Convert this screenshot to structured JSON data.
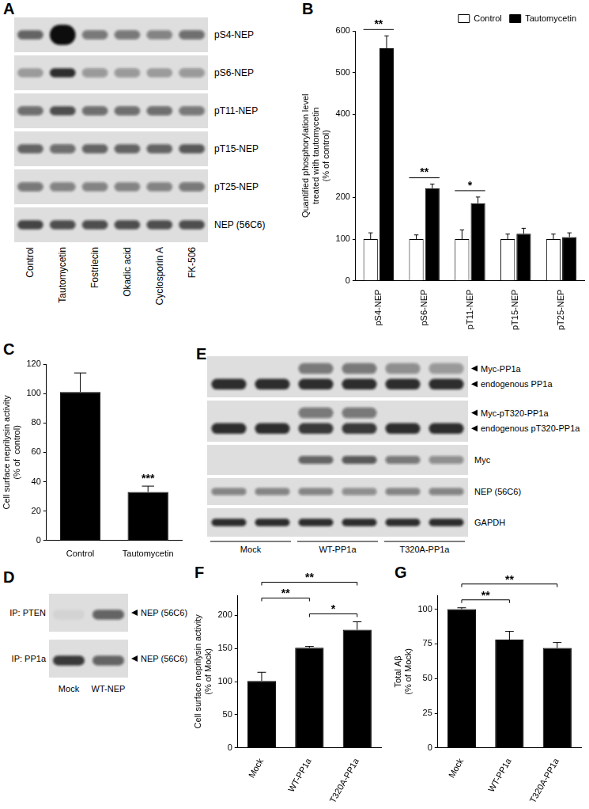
{
  "chart_data": [
    {
      "type": "bar",
      "title": "B",
      "categories": [
        "pS4-NEP",
        "pS6-NEP",
        "pT11-NEP",
        "pT15-NEP",
        "pT25-NEP"
      ],
      "series": [
        {
          "name": "Control",
          "color": "#ffffff",
          "values": [
            100,
            100,
            100,
            100,
            100
          ],
          "errors": [
            15,
            10,
            22,
            12,
            12
          ]
        },
        {
          "name": "Tautomycetin",
          "color": "#000000",
          "values": [
            558,
            222,
            186,
            113,
            105
          ],
          "errors": [
            30,
            10,
            15,
            13,
            10
          ]
        }
      ],
      "y_label": [
        "Quantified phosphorylation level",
        "treated with tautomycetin",
        "(% of control)"
      ],
      "ylim": [
        0,
        600
      ],
      "yticks": [
        0,
        100,
        200,
        400,
        500,
        600
      ],
      "legend": "top right",
      "grid": false,
      "annotations": [
        {
          "text": "**",
          "category": "pS4-NEP"
        },
        {
          "text": "**",
          "category": "pS6-NEP"
        },
        {
          "text": "*",
          "category": "pT11-NEP"
        }
      ]
    },
    {
      "type": "bar",
      "title": "C",
      "categories": [
        "Control",
        "Tautomycetin"
      ],
      "values": [
        101,
        33
      ],
      "errors": [
        13,
        4
      ],
      "color": "#000000",
      "y_label": [
        "Cell surface neprilysin activity",
        "(% of  control)"
      ],
      "ylim": [
        0,
        120
      ],
      "yticks": [
        0,
        20,
        40,
        60,
        80,
        100,
        120
      ],
      "grid": false,
      "annotations": [
        {
          "text": "***",
          "category": "Tautomycetin"
        }
      ]
    },
    {
      "type": "bar",
      "title": "F",
      "categories": [
        "Mock",
        "WT-PP1a",
        "T320A-PP1a"
      ],
      "values": [
        101,
        151,
        178
      ],
      "errors": [
        13,
        2,
        12
      ],
      "color": "#000000",
      "y_label": [
        "Cell surface neprilysin activity",
        "(% of Mock)"
      ],
      "ylim": [
        0,
        230
      ],
      "yticks": [
        0,
        50,
        100,
        150,
        200
      ],
      "grid": false,
      "annotations": [
        {
          "text": "*",
          "from": "WT-PP1a",
          "to": "T320A-PP1a"
        },
        {
          "text": "**",
          "from": "Mock",
          "to": "WT-PP1a"
        },
        {
          "text": "**",
          "from": "Mock",
          "to": "T320A-PP1a"
        }
      ]
    },
    {
      "type": "bar",
      "title": "G",
      "categories": [
        "Mock",
        "WT-PP1a",
        "T320A-PP1a"
      ],
      "values": [
        100,
        78,
        72
      ],
      "errors": [
        1,
        6,
        4
      ],
      "color": "#000000",
      "y_label": [
        "Total Aβ",
        "(% of Mock)"
      ],
      "ylim": [
        0,
        110
      ],
      "yticks": [
        0,
        25,
        50,
        75,
        100
      ],
      "grid": false,
      "annotations": [
        {
          "text": "**",
          "from": "Mock",
          "to": "WT-PP1a"
        },
        {
          "text": "**",
          "from": "Mock",
          "to": "T320A-PP1a"
        }
      ]
    }
  ],
  "blots": [
    {
      "title": "A",
      "rows": [
        {
          "labels": [
            "pS4-NEP"
          ]
        },
        {
          "labels": [
            "pS6-NEP"
          ]
        },
        {
          "labels": [
            "pT11-NEP"
          ]
        },
        {
          "labels": [
            "pT15-NEP"
          ]
        },
        {
          "labels": [
            "pT25-NEP"
          ]
        },
        {
          "labels": [
            "NEP (56C6)"
          ]
        }
      ],
      "lanes": [
        "Control",
        "Tautomycetin",
        "Fostriecin",
        "Okadic acid",
        "Cyclosporin A",
        "FK-506"
      ]
    },
    {
      "title": "D",
      "rows": [
        {
          "name": "IP: PTEN",
          "labels": [
            "NEP (56C6)"
          ]
        },
        {
          "name": "IP: PP1a",
          "labels": [
            "NEP (56C6)"
          ]
        }
      ],
      "lanes": [
        "Mock",
        "WT-NEP"
      ]
    },
    {
      "title": "E",
      "rows": [
        {
          "labels": [
            "Myc-PP1a",
            "endogenous PP1a"
          ]
        },
        {
          "labels": [
            "Myc-pT320-PP1a",
            "endogenous pT320-PP1a"
          ]
        },
        {
          "labels": [
            "Myc"
          ]
        },
        {
          "labels": [
            "NEP (56C6)"
          ]
        },
        {
          "labels": [
            "GAPDH"
          ]
        }
      ],
      "lane_groups": [
        "Mock",
        "WT-PP1a",
        "T320A-PP1a"
      ]
    }
  ]
}
